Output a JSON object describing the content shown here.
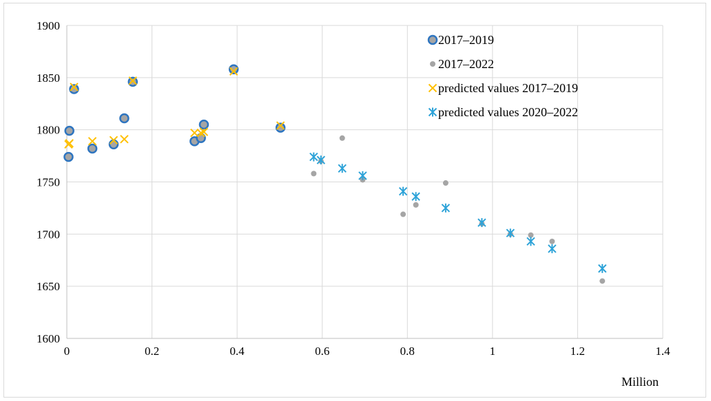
{
  "chart_data": {
    "type": "scatter",
    "xlabel": "Million",
    "ylabel": "",
    "xlim": [
      0,
      1.4
    ],
    "ylim": [
      1600,
      1900
    ],
    "x_ticks": [
      "0",
      "0.2",
      "0.4",
      "0.6",
      "0.8",
      "1",
      "1.2",
      "1.4"
    ],
    "y_ticks": [
      "1600",
      "1650",
      "1700",
      "1750",
      "1800",
      "1850",
      "1900"
    ],
    "grid": true,
    "legend_position": "top-right",
    "series": [
      {
        "name": "2017–2019",
        "marker": "circle-large",
        "color": "#2e75c0",
        "fill": "#a5a5a5",
        "points": [
          [
            0.004,
            1774
          ],
          [
            0.006,
            1799
          ],
          [
            0.017,
            1839
          ],
          [
            0.06,
            1782
          ],
          [
            0.11,
            1786
          ],
          [
            0.135,
            1811
          ],
          [
            0.155,
            1846
          ],
          [
            0.3,
            1789
          ],
          [
            0.315,
            1792
          ],
          [
            0.322,
            1805
          ],
          [
            0.392,
            1858
          ],
          [
            0.502,
            1802
          ]
        ]
      },
      {
        "name": "2017–2022",
        "marker": "circle-small",
        "color": "#a5a5a5",
        "points": [
          [
            0.58,
            1758
          ],
          [
            0.597,
            1770
          ],
          [
            0.647,
            1792
          ],
          [
            0.695,
            1752
          ],
          [
            0.79,
            1719
          ],
          [
            0.82,
            1728
          ],
          [
            0.89,
            1749
          ],
          [
            0.975,
            1710
          ],
          [
            1.042,
            1700
          ],
          [
            1.09,
            1699
          ],
          [
            1.14,
            1693
          ],
          [
            1.258,
            1655
          ]
        ]
      },
      {
        "name": "predicted values 2017–2019",
        "marker": "x",
        "color": "#ffc000",
        "points": [
          [
            0.004,
            1786
          ],
          [
            0.006,
            1787
          ],
          [
            0.017,
            1841
          ],
          [
            0.06,
            1789
          ],
          [
            0.11,
            1790
          ],
          [
            0.135,
            1791
          ],
          [
            0.155,
            1847
          ],
          [
            0.3,
            1797
          ],
          [
            0.315,
            1797
          ],
          [
            0.322,
            1798
          ],
          [
            0.392,
            1856
          ],
          [
            0.502,
            1804
          ]
        ]
      },
      {
        "name": "predicted values 2020–2022",
        "marker": "star",
        "color": "#2ea3d8",
        "points": [
          [
            0.58,
            1774
          ],
          [
            0.597,
            1771
          ],
          [
            0.647,
            1763
          ],
          [
            0.695,
            1756
          ],
          [
            0.79,
            1741
          ],
          [
            0.82,
            1736
          ],
          [
            0.89,
            1725
          ],
          [
            0.975,
            1711
          ],
          [
            1.042,
            1701
          ],
          [
            1.09,
            1693
          ],
          [
            1.14,
            1686
          ],
          [
            1.258,
            1667
          ]
        ]
      }
    ]
  }
}
